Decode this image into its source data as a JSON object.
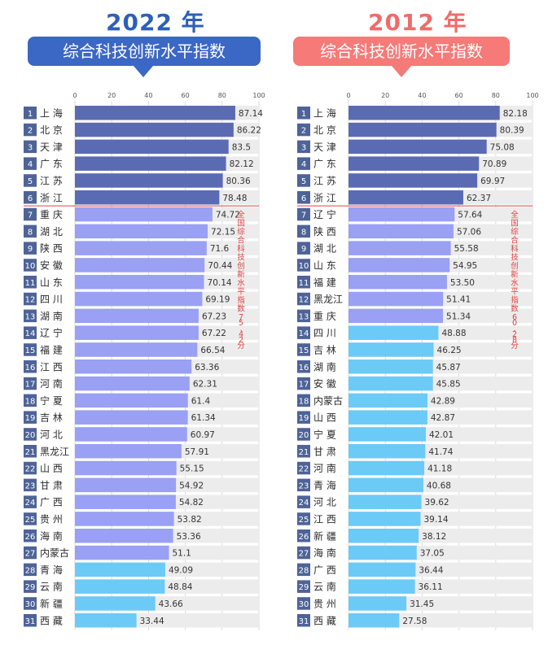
{
  "left": {
    "year_label": "2022 年",
    "banner": "综合科技创新水平指数",
    "note": "全国综合科技创新水平指数75.42分"
  },
  "right": {
    "year_label": "2012 年",
    "banner": "综合科技创新水平指数",
    "note": "全国综合科技创新水平指数60.28分"
  },
  "colors": {
    "top_bar": "#5b6bb3",
    "mid_bar": "#9aa0f4",
    "low_bar": "#6ccaf7",
    "track": "#ececec",
    "rank_box": "#4e6397",
    "divider": "#e2413f",
    "note_text": "#e2413f"
  },
  "chart_data": [
    {
      "type": "bar",
      "orientation": "horizontal",
      "title": "2022 年",
      "xlim": [
        0,
        100
      ],
      "x_ticks": [
        0,
        20,
        40,
        60,
        80,
        100
      ],
      "ranks": [
        "1",
        "2",
        "3",
        "4",
        "5",
        "6",
        "7",
        "8",
        "9",
        "10",
        "11",
        "12",
        "13",
        "14",
        "15",
        "16",
        "17",
        "18",
        "19",
        "20",
        "21",
        "22",
        "23",
        "24",
        "25",
        "26",
        "27",
        "28",
        "29",
        "30",
        "31"
      ],
      "categories": [
        "上 海",
        "北 京",
        "天 津",
        "广 东",
        "江 苏",
        "浙 江",
        "重 庆",
        "湖 北",
        "陕 西",
        "安 徽",
        "山 东",
        "四 川",
        "湖 南",
        "辽 宁",
        "福 建",
        "江 西",
        "河 南",
        "宁 夏",
        "吉 林",
        "河 北",
        "黑龙江",
        "山 西",
        "甘 肃",
        "广 西",
        "贵 州",
        "海 南",
        "内蒙古",
        "青 海",
        "云 南",
        "新 疆",
        "西 藏"
      ],
      "values": [
        87.14,
        86.22,
        83.5,
        82.12,
        80.36,
        78.48,
        74.72,
        72.15,
        71.6,
        70.44,
        70.14,
        69.19,
        67.23,
        67.22,
        66.54,
        63.36,
        62.31,
        61.4,
        61.34,
        60.97,
        57.91,
        55.15,
        54.92,
        54.82,
        53.82,
        53.36,
        51.1,
        49.09,
        48.84,
        43.66,
        33.44
      ],
      "value_labels": [
        "87.14",
        "86.22",
        "83.5",
        "82.12",
        "80.36",
        "78.48",
        "74.72",
        "72.15",
        "71.6",
        "70.44",
        "70.14",
        "69.19",
        "67.23",
        "67.22",
        "66.54",
        "63.36",
        "62.31",
        "61.4",
        "61.34",
        "60.97",
        "57.91",
        "55.15",
        "54.92",
        "54.82",
        "53.82",
        "53.36",
        "51.1",
        "49.09",
        "48.84",
        "43.66",
        "33.44"
      ],
      "tier": [
        "top",
        "top",
        "top",
        "top",
        "top",
        "top",
        "mid",
        "mid",
        "mid",
        "mid",
        "mid",
        "mid",
        "mid",
        "mid",
        "mid",
        "mid",
        "mid",
        "mid",
        "mid",
        "mid",
        "mid",
        "mid",
        "mid",
        "mid",
        "mid",
        "mid",
        "mid",
        "low",
        "low",
        "low",
        "low"
      ],
      "divider_after_rank": 6,
      "national_average": 75.42,
      "grid": true
    },
    {
      "type": "bar",
      "orientation": "horizontal",
      "title": "2012 年",
      "xlim": [
        0,
        100
      ],
      "x_ticks": [
        0,
        20,
        40,
        60,
        80,
        100
      ],
      "ranks": [
        "1",
        "2",
        "3",
        "4",
        "5",
        "6",
        "7",
        "8",
        "9",
        "10",
        "11",
        "12",
        "13",
        "14",
        "15",
        "16",
        "17",
        "18",
        "19",
        "20",
        "21",
        "22",
        "23",
        "24",
        "25",
        "26",
        "27",
        "28",
        "29",
        "30",
        "31"
      ],
      "categories": [
        "上 海",
        "北 京",
        "天 津",
        "广 东",
        "江 苏",
        "浙 江",
        "辽 宁",
        "陕 西",
        "湖 北",
        "山 东",
        "福 建",
        "黑龙江",
        "重 庆",
        "四 川",
        "吉 林",
        "湖 南",
        "安 徽",
        "内蒙古",
        "山 西",
        "宁 夏",
        "甘 肃",
        "河 南",
        "青 海",
        "河 北",
        "江 西",
        "新 疆",
        "海 南",
        "广 西",
        "云 南",
        "贵 州",
        "西 藏"
      ],
      "values": [
        82.18,
        80.39,
        75.08,
        70.89,
        69.97,
        62.37,
        57.64,
        57.06,
        55.58,
        54.95,
        53.5,
        51.41,
        51.34,
        48.88,
        46.25,
        45.87,
        45.85,
        42.89,
        42.87,
        42.01,
        41.74,
        41.18,
        40.68,
        39.62,
        39.14,
        38.12,
        37.05,
        36.44,
        36.11,
        31.45,
        27.58
      ],
      "value_labels": [
        "82.18",
        "80.39",
        "75.08",
        "70.89",
        "69.97",
        "62.37",
        "57.64",
        "57.06",
        "55.58",
        "54.95",
        "53.50",
        "51.41",
        "51.34",
        "48.88",
        "46.25",
        "45.87",
        "45.85",
        "42.89",
        "42.87",
        "42.01",
        "41.74",
        "41.18",
        "40.68",
        "39.62",
        "39.14",
        "38.12",
        "37.05",
        "36.44",
        "36.11",
        "31.45",
        "27.58"
      ],
      "tier": [
        "top",
        "top",
        "top",
        "top",
        "top",
        "top",
        "mid",
        "mid",
        "mid",
        "mid",
        "mid",
        "mid",
        "mid",
        "low",
        "low",
        "low",
        "low",
        "low",
        "low",
        "low",
        "low",
        "low",
        "low",
        "low",
        "low",
        "low",
        "low",
        "low",
        "low",
        "low",
        "low"
      ],
      "divider_after_rank": 6,
      "national_average": 60.28,
      "grid": true
    }
  ]
}
